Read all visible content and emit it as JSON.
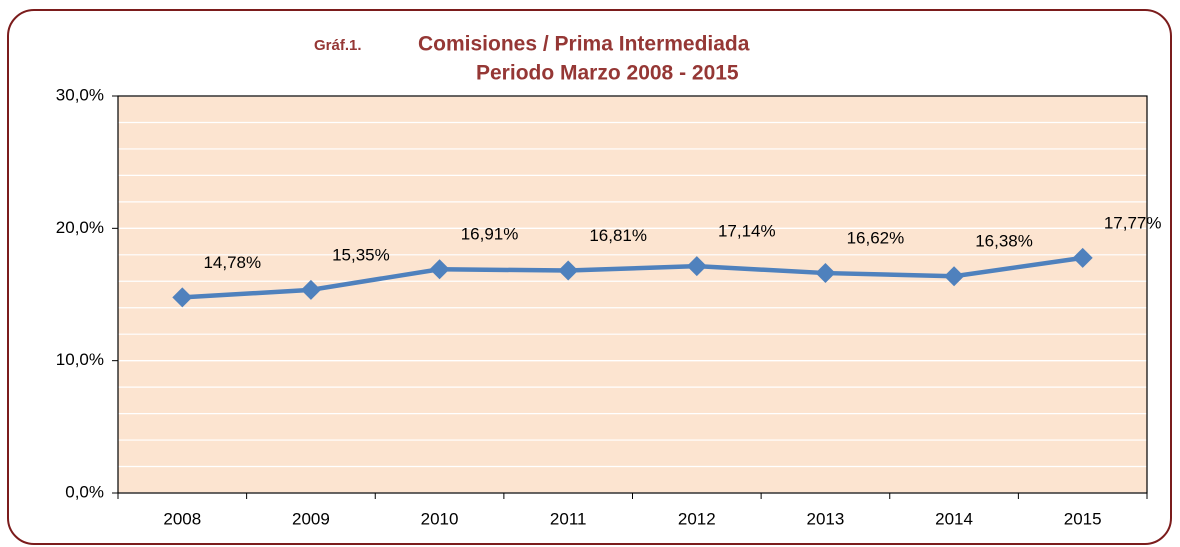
{
  "chart_data": {
    "type": "line",
    "figure_label": "Gráf.1.",
    "title": "Comisiones / Prima Intermediada",
    "subtitle": "Periodo Marzo 2008 - 2015",
    "categories": [
      "2008",
      "2009",
      "2010",
      "2011",
      "2012",
      "2013",
      "2014",
      "2015"
    ],
    "values": [
      14.78,
      15.35,
      16.91,
      16.81,
      17.14,
      16.62,
      16.38,
      17.77
    ],
    "value_labels": [
      "14,78%",
      "15,35%",
      "16,91%",
      "16,81%",
      "17,14%",
      "16,62%",
      "16,38%",
      "17,77%"
    ],
    "color": "#4f81bd",
    "ylim": [
      0,
      30
    ],
    "yticks": [
      {
        "value": 0,
        "label": "0,0%"
      },
      {
        "value": 10,
        "label": "10,0%"
      },
      {
        "value": 20,
        "label": "20,0%"
      },
      {
        "value": 30,
        "label": "30,0%"
      }
    ],
    "minor_yticks": [
      2,
      4,
      6,
      8,
      12,
      14,
      16,
      18,
      22,
      24,
      26,
      28
    ],
    "grid": true
  }
}
